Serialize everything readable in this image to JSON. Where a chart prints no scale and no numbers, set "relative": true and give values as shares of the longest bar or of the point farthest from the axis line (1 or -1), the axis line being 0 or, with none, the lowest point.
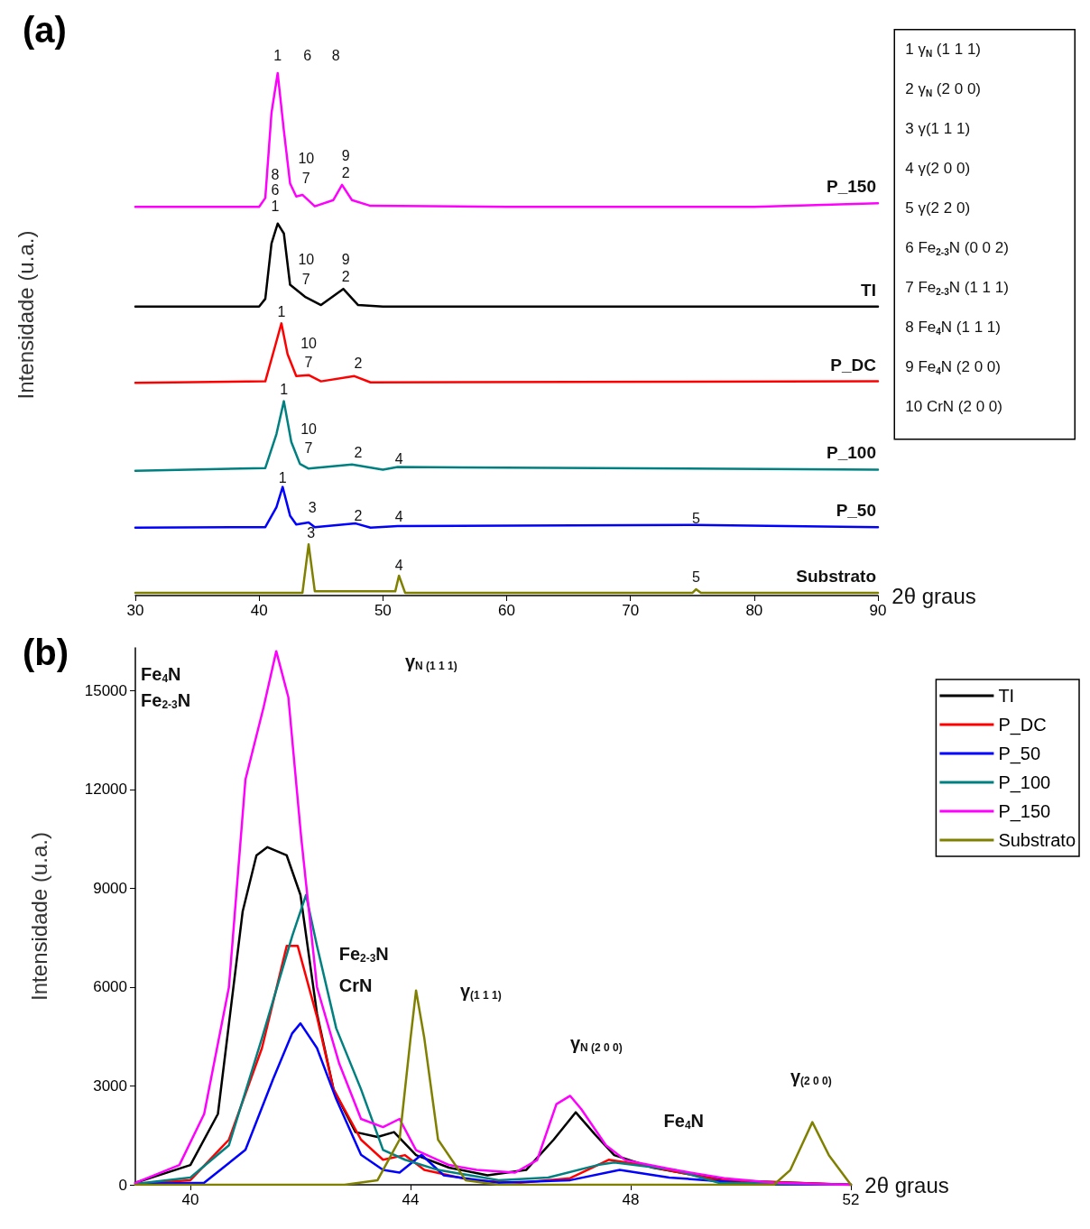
{
  "chart_data": [
    {
      "type": "line",
      "title": "(a)",
      "xlabel": "2θ graus",
      "ylabel": "Intensidade (u.a.)",
      "relative": true,
      "tick_labels": "x",
      "xlim": [
        30,
        90
      ],
      "xticks": [
        30,
        40,
        50,
        60,
        70,
        80,
        90
      ],
      "series": [
        {
          "name": "P_150",
          "color": "#ff00ff",
          "x": [
            30,
            39.5,
            40,
            40.5,
            41,
            41.5,
            42,
            42.5,
            43,
            43.5,
            44.5,
            46,
            46.7,
            47.5,
            49,
            60,
            80,
            90
          ],
          "values": [
            0.744,
            0.744,
            0.744,
            0.761,
            0.924,
            1.0,
            0.89,
            0.789,
            0.764,
            0.767,
            0.745,
            0.757,
            0.786,
            0.757,
            0.746,
            0.744,
            0.744,
            0.751
          ]
        },
        {
          "name": "TI",
          "color": "#000000",
          "x": [
            30,
            40,
            40.5,
            41,
            41.5,
            42,
            42.5,
            43.7,
            45,
            46.8,
            48,
            50,
            90
          ],
          "values": [
            0.553,
            0.553,
            0.568,
            0.674,
            0.712,
            0.693,
            0.595,
            0.572,
            0.556,
            0.587,
            0.556,
            0.553,
            0.553
          ]
        },
        {
          "name": "P_DC",
          "color": "#ff0000",
          "x": [
            30,
            40.5,
            41.3,
            41.8,
            42.3,
            43,
            44,
            45,
            47.7,
            49,
            90
          ],
          "values": [
            0.407,
            0.41,
            0.478,
            0.521,
            0.462,
            0.42,
            0.422,
            0.41,
            0.42,
            0.408,
            0.41
          ]
        },
        {
          "name": "P_100",
          "color": "#008080",
          "x": [
            30,
            40.5,
            41.4,
            42,
            42.6,
            43.3,
            44,
            47.5,
            50,
            51.2,
            90
          ],
          "values": [
            0.239,
            0.244,
            0.309,
            0.372,
            0.294,
            0.252,
            0.243,
            0.251,
            0.241,
            0.246,
            0.241
          ]
        },
        {
          "name": "P_50",
          "color": "#0000ff",
          "x": [
            30,
            40.5,
            41.4,
            41.9,
            42.5,
            43,
            44,
            44.5,
            47.8,
            49,
            51.2,
            75.2,
            90
          ],
          "values": [
            0.13,
            0.131,
            0.169,
            0.208,
            0.153,
            0.136,
            0.14,
            0.131,
            0.138,
            0.13,
            0.133,
            0.135,
            0.131
          ]
        },
        {
          "name": "Substrato",
          "color": "#808000",
          "x": [
            30,
            43.5,
            44,
            44.5,
            51,
            51.3,
            51.8,
            75,
            75.3,
            75.7,
            90
          ],
          "values": [
            0.005,
            0.005,
            0.098,
            0.008,
            0.008,
            0.038,
            0.005,
            0.005,
            0.012,
            0.005,
            0.005
          ]
        }
      ],
      "annotations": [
        "1 γ$_{N}$ (1 1 1)",
        "2 γ$_{N}$ (2 0 0)",
        "3 γ(1 1 1)",
        "4 γ(2 0 0)",
        "5 γ(2 2 0)",
        "6 Fe$_{2-3}$N (0 0 2)",
        "7 Fe$_{2-3}$N (1 1 1)",
        "8 Fe$_{4}$N (1 1 1)",
        "9 Fe$_{4}$N (2 0 0)",
        "10 CrN (2 0 0)",
        "1",
        "6",
        "8",
        "10",
        "7",
        "9",
        "2",
        "8",
        "6",
        "1",
        "10",
        "7",
        "9",
        "2",
        "1",
        "10",
        "7",
        "2",
        "1",
        "10",
        "7",
        "2",
        "4",
        "1",
        "3",
        "2",
        "4",
        "5",
        "3",
        "4",
        "5"
      ]
    },
    {
      "type": "line",
      "title": "(b)",
      "xlabel": "2θ graus",
      "ylabel": "Intensidade (u.a.)",
      "xlim": [
        39,
        52
      ],
      "xticks": [
        40,
        44,
        48,
        52
      ],
      "ylim": [
        0,
        16300
      ],
      "yticks": [
        0,
        3000,
        6000,
        9000,
        12000,
        15000
      ],
      "legend": "top right",
      "series": [
        {
          "name": "TI",
          "color": "#000000",
          "x": [
            39,
            40,
            40.5,
            40.95,
            41.2,
            41.4,
            41.75,
            42,
            42.3,
            42.6,
            43,
            43.4,
            43.7,
            44.1,
            44.7,
            45.4,
            46.1,
            46.6,
            47,
            47.35,
            47.7,
            48.4,
            49.7,
            52
          ],
          "values": [
            60,
            600,
            2150,
            8300,
            10000,
            10250,
            10000,
            8800,
            5200,
            2900,
            1600,
            1450,
            1600,
            900,
            520,
            290,
            450,
            1370,
            2200,
            1530,
            900,
            520,
            140,
            0
          ]
        },
        {
          "name": "P_DC",
          "color": "#ff0000",
          "x": [
            39,
            40,
            40.7,
            41.3,
            41.75,
            41.95,
            42.3,
            42.6,
            43.1,
            43.5,
            43.9,
            44.25,
            45.1,
            46,
            46.9,
            47.6,
            48.2,
            49.6,
            52
          ],
          "values": [
            30,
            140,
            1370,
            4150,
            7250,
            7250,
            5100,
            2900,
            1370,
            760,
            900,
            450,
            140,
            60,
            200,
            760,
            600,
            140,
            0
          ]
        },
        {
          "name": "P_50",
          "color": "#0000ff",
          "x": [
            39,
            40.25,
            41,
            41.5,
            41.85,
            42,
            42.3,
            42.65,
            43.1,
            43.5,
            43.8,
            44.2,
            44.6,
            45.6,
            46.9,
            47.8,
            48.7,
            50,
            51.3,
            52
          ],
          "values": [
            30,
            60,
            1060,
            3200,
            4600,
            4900,
            4150,
            2600,
            910,
            450,
            370,
            910,
            290,
            60,
            140,
            450,
            220,
            60,
            0,
            0
          ]
        },
        {
          "name": "P_100",
          "color": "#008080",
          "x": [
            39,
            40,
            40.7,
            41.3,
            41.85,
            42.1,
            42.3,
            42.65,
            43.1,
            43.5,
            43.9,
            44.5,
            45.6,
            46.5,
            47.4,
            47.7,
            48.8,
            49.6,
            52
          ],
          "values": [
            30,
            220,
            1200,
            4450,
            7550,
            8800,
            7250,
            4750,
            2900,
            1060,
            760,
            450,
            140,
            220,
            600,
            680,
            450,
            60,
            0
          ]
        },
        {
          "name": "P_150",
          "color": "#ff00ff",
          "x": [
            39,
            39.8,
            40.25,
            40.7,
            41,
            41.33,
            41.56,
            41.78,
            42.01,
            42.3,
            42.7,
            43.1,
            43.5,
            43.8,
            44.1,
            44.7,
            45.2,
            45.9,
            46.3,
            46.65,
            46.9,
            47.1,
            47.55,
            47.9,
            48.8,
            49.7,
            50.6,
            52
          ],
          "values": [
            60,
            600,
            2150,
            6000,
            12300,
            14500,
            16200,
            14800,
            10600,
            6000,
            3700,
            2000,
            1750,
            2000,
            1050,
            600,
            450,
            370,
            750,
            2450,
            2700,
            2300,
            1200,
            750,
            450,
            200,
            60,
            0
          ]
        },
        {
          "name": "Substrato",
          "color": "#808000",
          "x": [
            39,
            42.8,
            43.4,
            43.8,
            44,
            44.1,
            44.25,
            44.5,
            45,
            45.6,
            50.6,
            50.9,
            51.3,
            51.6,
            52
          ],
          "values": [
            0,
            0,
            140,
            1370,
            4450,
            5900,
            4450,
            1370,
            140,
            0,
            0,
            450,
            1900,
            900,
            0
          ]
        }
      ],
      "annotations": [
        "Fe$_{4}$N",
        "Fe$_{2-3}$N",
        "γ$_{N (1 1 1)}$",
        "Fe$_{2-3}$N",
        "CrN",
        "γ$_{(1 1 1)}$",
        "γ$_{N (2 0 0)}$",
        "Fe$_{4}$N",
        "γ$_{(2 0 0)}$"
      ]
    }
  ]
}
